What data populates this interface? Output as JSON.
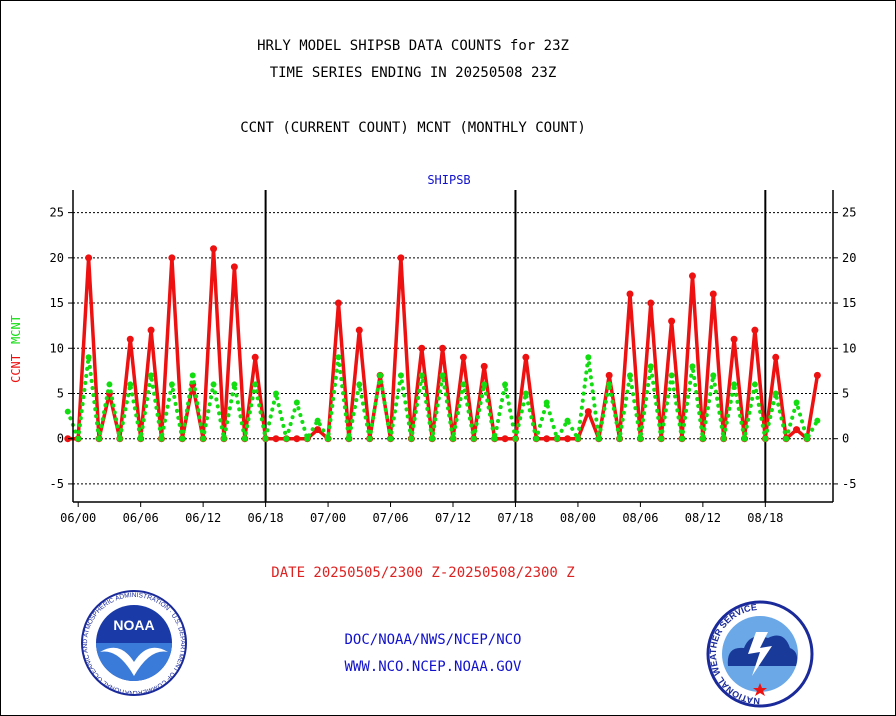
{
  "titles": {
    "line1": "HRLY MODEL SHIPSB DATA COUNTS for 23Z",
    "line2": "TIME SERIES ENDING IN 20250508 23Z",
    "line3": "CCNT (CURRENT COUNT) MCNT (MONTHLY COUNT)"
  },
  "footer": {
    "date_range": "DATE 20250505/2300 Z-20250508/2300 Z",
    "org": "DOC/NOAA/NWS/NCEP/NCO",
    "url": "WWW.NCO.NCEP.NOAA.GOV"
  },
  "logos": {
    "noaa_badge": "NOAA",
    "noaa_ring": "NATIONAL OCEANIC AND ATMOSPHERIC ADMINISTRATION · U.S. DEPARTMENT OF COMMERCE",
    "nws_ring": "NATIONAL WEATHER SERVICE"
  },
  "colors": {
    "ccnt": "#ee1111",
    "mcnt": "#11dd11",
    "axis": "#000000",
    "title_blue": "#1111cc",
    "date_red": "#dd2222"
  },
  "chart_data": {
    "type": "line",
    "title": "SHIPSB",
    "ylabel_ccnt": "CCNT",
    "ylabel_mcnt": "MCNT",
    "ylim": [
      -7,
      27.5
    ],
    "yticks": [
      -5,
      0,
      5,
      10,
      15,
      20,
      25
    ],
    "xlim": [
      -0.5,
      72.5
    ],
    "xticks": [
      {
        "x": 0,
        "label": "06/00"
      },
      {
        "x": 6,
        "label": "06/06"
      },
      {
        "x": 12,
        "label": "06/12"
      },
      {
        "x": 18,
        "label": "06/18"
      },
      {
        "x": 24,
        "label": "07/00"
      },
      {
        "x": 30,
        "label": "07/06"
      },
      {
        "x": 36,
        "label": "07/12"
      },
      {
        "x": 42,
        "label": "07/18"
      },
      {
        "x": 48,
        "label": "08/00"
      },
      {
        "x": 54,
        "label": "08/06"
      },
      {
        "x": 60,
        "label": "08/12"
      },
      {
        "x": 66,
        "label": "08/18"
      }
    ],
    "day_boundaries": [
      18,
      42,
      66
    ],
    "grid": true,
    "x_start": -1,
    "x_step": 1,
    "series": [
      {
        "name": "CCNT",
        "style": "solid",
        "values": [
          0,
          0,
          20,
          0,
          5,
          0,
          11,
          0,
          12,
          0,
          20,
          0,
          6,
          0,
          21,
          0,
          19,
          0,
          9,
          0,
          0,
          0,
          0,
          0,
          1,
          0,
          15,
          0,
          12,
          0,
          7,
          0,
          20,
          0,
          10,
          0,
          10,
          0,
          9,
          0,
          8,
          0,
          0,
          0,
          9,
          0,
          0,
          0,
          0,
          0,
          3,
          0,
          7,
          0,
          16,
          0,
          15,
          0,
          13,
          0,
          18,
          0,
          16,
          0,
          11,
          0,
          12,
          0,
          9,
          0,
          1,
          0,
          7
        ]
      },
      {
        "name": "MCNT",
        "style": "dotted",
        "values": [
          3,
          0,
          9,
          0,
          6,
          0,
          6,
          0,
          7,
          0,
          6,
          0,
          7,
          0,
          6,
          0,
          6,
          0,
          6,
          0,
          5,
          0,
          4,
          0,
          2,
          0,
          9,
          0,
          6,
          0,
          7,
          0,
          7,
          0,
          7,
          0,
          7,
          0,
          6,
          0,
          6,
          0,
          6,
          0,
          5,
          0,
          4,
          0,
          2,
          0,
          9,
          0,
          6,
          0,
          7,
          0,
          8,
          0,
          7,
          0,
          8,
          0,
          7,
          0,
          6,
          0,
          6,
          0,
          5,
          0,
          4,
          0,
          2
        ]
      }
    ]
  }
}
